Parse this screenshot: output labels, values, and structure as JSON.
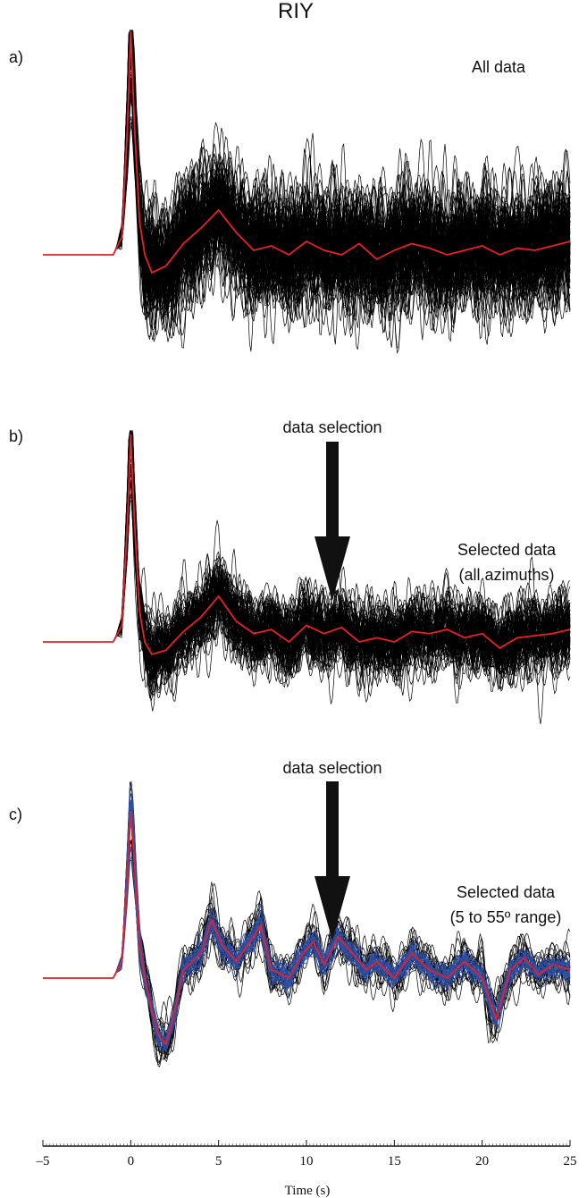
{
  "chart_data": {
    "type": "line",
    "title": "RIY",
    "xlabel": "Time (s)",
    "xlim": [
      -5,
      25
    ],
    "x_ticks": [
      -5,
      0,
      5,
      10,
      15,
      20,
      25
    ],
    "x_tick_labels": [
      "–5",
      "0",
      "5",
      "10",
      "15",
      "20",
      "25"
    ],
    "panels": [
      {
        "label": "a)",
        "annotation_lines": [
          "All data"
        ],
        "mean_color": "#e8202a",
        "trace_color": "#000000",
        "mean_trace": {
          "t": [
            -5,
            -1,
            -0.5,
            -0.2,
            0,
            0.2,
            0.5,
            0.8,
            1.2,
            2,
            3,
            4,
            5,
            6,
            7,
            8,
            9,
            10,
            11,
            12,
            13,
            14,
            15,
            16,
            17,
            18,
            19,
            20,
            21,
            22,
            23,
            24,
            25
          ],
          "amp": [
            0,
            0,
            0.08,
            0.55,
            1.0,
            0.6,
            0.15,
            0.0,
            -0.08,
            -0.05,
            0.05,
            0.12,
            0.2,
            0.1,
            0.02,
            0.04,
            0.0,
            0.06,
            0.02,
            0.0,
            0.05,
            -0.02,
            0.02,
            0.05,
            0.03,
            0.0,
            0.02,
            0.04,
            0.0,
            0.03,
            0.02,
            0.04,
            0.06
          ]
        }
      },
      {
        "label": "b)",
        "annotation_lines": [
          "Selected data",
          "(all azimuths)"
        ],
        "arrow_label": "data selection",
        "mean_color": "#e8202a",
        "trace_color": "#000000",
        "mean_trace": {
          "t": [
            -5,
            -1,
            -0.5,
            -0.2,
            0,
            0.2,
            0.5,
            0.8,
            1.2,
            2,
            3,
            4,
            5,
            6,
            7,
            8,
            9,
            10,
            11,
            12,
            13,
            14,
            15,
            16,
            17,
            18,
            19,
            20,
            21,
            22,
            23,
            24,
            25
          ],
          "amp": [
            0,
            0,
            0.08,
            0.55,
            1.0,
            0.6,
            0.15,
            0.0,
            -0.06,
            -0.04,
            0.05,
            0.12,
            0.22,
            0.1,
            0.04,
            0.06,
            0.0,
            0.08,
            0.04,
            0.07,
            0.0,
            0.02,
            0.0,
            0.05,
            0.04,
            0.06,
            0.02,
            0.04,
            -0.03,
            0.02,
            0.03,
            0.04,
            0.06
          ]
        }
      },
      {
        "label": "c)",
        "annotation_lines": [
          "Selected data",
          "(5 to 55º range)"
        ],
        "arrow_label": "data selection",
        "mean_color": "#e8202a",
        "trace_color": "#000000",
        "selected_color": "#2e4fa3",
        "mean_trace": {
          "t": [
            -5,
            -1,
            -0.5,
            -0.2,
            0,
            0.2,
            0.5,
            0.8,
            1.2,
            1.6,
            2,
            2.4,
            3,
            4,
            4.6,
            5.2,
            6,
            6.8,
            7.4,
            8,
            9,
            9.8,
            10.4,
            11,
            11.8,
            12.6,
            13.4,
            14,
            15,
            16,
            17,
            18,
            19,
            20,
            20.8,
            21.6,
            22.4,
            23.2,
            24,
            25
          ],
          "amp": [
            0,
            0,
            0.1,
            0.6,
            1.0,
            0.7,
            0.2,
            0.0,
            -0.2,
            -0.35,
            -0.4,
            -0.25,
            0.05,
            0.15,
            0.35,
            0.2,
            0.1,
            0.22,
            0.32,
            0.05,
            0.0,
            0.15,
            0.22,
            0.08,
            0.25,
            0.15,
            0.05,
            0.1,
            0.0,
            0.15,
            0.05,
            0.0,
            0.1,
            0.0,
            -0.25,
            0.05,
            0.12,
            0.02,
            0.08,
            0.05
          ]
        }
      }
    ]
  }
}
